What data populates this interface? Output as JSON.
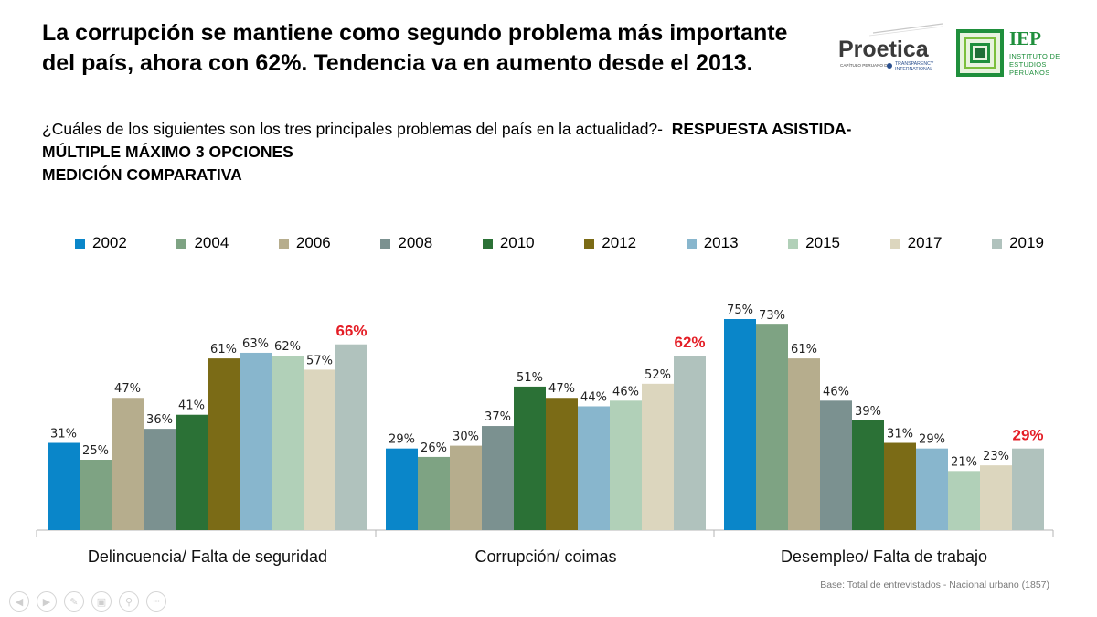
{
  "title": "La corrupción se mantiene como segundo problema más importante del país, ahora con 62%. Tendencia va en aumento desde el 2013.",
  "question": {
    "text": "¿Cuáles de los siguientes son los tres principales problemas del país en la actualidad?-",
    "bold_1": "RESPUESTA ASISTIDA-",
    "bold_2": "MÚLTIPLE MÁXIMO 3 OPCIONES",
    "bold_3": "MEDICIÓN COMPARATIVA"
  },
  "logos": {
    "proetica": {
      "name": "Proetica",
      "subtitle_1": "CAPÍTULO PERUANO DE",
      "subtitle_2": "TRANSPARENCY",
      "subtitle_3": "INTERNATIONAL"
    },
    "iep": {
      "name": "IEP",
      "line_1": "INSTITUTO DE",
      "line_2": "ESTUDIOS",
      "line_3": "PERUANOS"
    }
  },
  "colors": {
    "highlight": "#e41e26",
    "series": [
      "#0a86c9",
      "#7ea383",
      "#b6ad8d",
      "#7b9190",
      "#2b7136",
      "#7b6b16",
      "#88b6cd",
      "#b1d0b8",
      "#dcd6be",
      "#b0c2bd"
    ]
  },
  "chart_data": {
    "type": "bar",
    "categories": [
      "Delincuencia/ Falta de seguridad",
      "Corrupción/ coimas",
      "Desempleo/ Falta de trabajo"
    ],
    "series": [
      {
        "name": "2002",
        "values": [
          31,
          29,
          75
        ]
      },
      {
        "name": "2004",
        "values": [
          25,
          26,
          73
        ]
      },
      {
        "name": "2006",
        "values": [
          47,
          30,
          61
        ]
      },
      {
        "name": "2008",
        "values": [
          36,
          37,
          46
        ]
      },
      {
        "name": "2010",
        "values": [
          41,
          51,
          39
        ]
      },
      {
        "name": "2012",
        "values": [
          61,
          47,
          31
        ]
      },
      {
        "name": "2013",
        "values": [
          63,
          44,
          29
        ]
      },
      {
        "name": "2015",
        "values": [
          62,
          46,
          21
        ]
      },
      {
        "name": "2017",
        "values": [
          57,
          52,
          23
        ]
      },
      {
        "name": "2019",
        "values": [
          66,
          62,
          29
        ]
      }
    ],
    "value_suffix": "%",
    "ylim": [
      0,
      80
    ],
    "grid": false,
    "legend_position": "top",
    "highlight_series": "2019"
  },
  "footnote": "Base: Total de entrevistados - Nacional urbano (1857)",
  "nav_icons": [
    "previous-icon",
    "next-icon",
    "pen-icon",
    "slides-icon",
    "zoom-icon",
    "more-icon"
  ]
}
